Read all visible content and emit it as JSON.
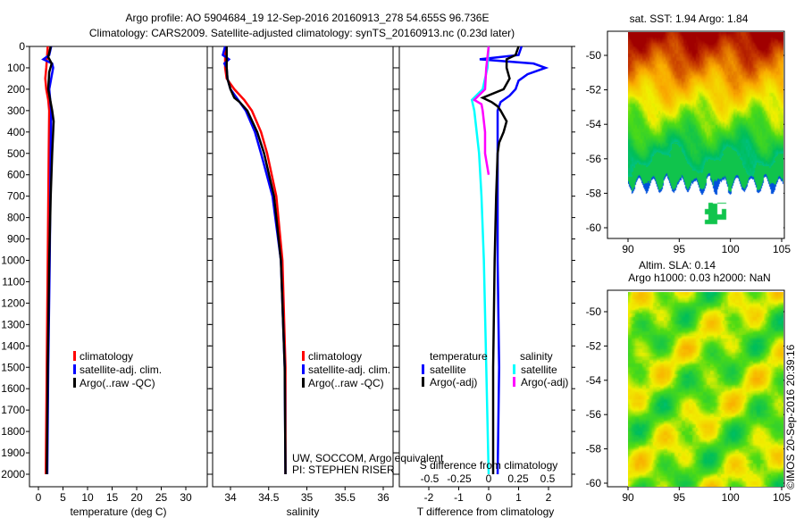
{
  "title_line1": "Argo profile: AO 5904684_19 12-Sep-2016 20160913_278 54.655S 96.736E",
  "title_line2": "Climatology: CARS2009. Satellite-adjusted climatology: synTS_20160913.nc (0.23d later)",
  "credit": "©IMOS 20-Sep-2016 20:39:16",
  "colors": {
    "climatology": "#ff0000",
    "satellite": "#0000ff",
    "argo": "#000000",
    "sal_satellite": "#00ffff",
    "sal_argo": "#ff00ff"
  },
  "chart_data": [
    {
      "type": "line",
      "name": "temperature",
      "xlabel": "temperature (deg C)",
      "xlim": [
        -2,
        32
      ],
      "xticks": [
        0,
        5,
        10,
        15,
        20,
        25,
        30
      ],
      "ylim": [
        2060,
        0
      ],
      "yticks": [
        0,
        100,
        200,
        300,
        400,
        500,
        600,
        700,
        800,
        900,
        1000,
        1100,
        1200,
        1300,
        1400,
        1500,
        1600,
        1700,
        1800,
        1900,
        2000
      ],
      "legend": [
        "climatology",
        "satellite-adj. clim.",
        "Argo(..raw -QC)"
      ],
      "series": [
        {
          "name": "climatology",
          "depth": [
            0,
            100,
            150,
            200,
            250,
            300,
            500,
            1000,
            1500,
            2000
          ],
          "values": [
            1.9,
            1.6,
            1.4,
            1.6,
            2.0,
            2.2,
            2.1,
            1.9,
            1.7,
            1.5
          ]
        },
        {
          "name": "satellite-adj. clim.",
          "depth": [
            0,
            40,
            60,
            80,
            100,
            150,
            200,
            250,
            300,
            500,
            1000,
            1500,
            2000
          ],
          "values": [
            2.6,
            2.2,
            1.0,
            2.8,
            3.0,
            2.6,
            2.2,
            2.4,
            2.6,
            2.5,
            2.3,
            2.0,
            1.8
          ]
        },
        {
          "name": "Argo(..raw -QC)",
          "depth": [
            0,
            50,
            80,
            120,
            200,
            250,
            300,
            350,
            400,
            500,
            700,
            1000,
            1500,
            2000
          ],
          "values": [
            2.5,
            2.0,
            2.7,
            2.2,
            2.0,
            2.4,
            2.8,
            3.1,
            3.0,
            2.8,
            2.5,
            2.2,
            1.9,
            1.7
          ]
        }
      ]
    },
    {
      "type": "line",
      "name": "salinity",
      "xlabel": "salinity",
      "xlim": [
        33.77,
        36.12
      ],
      "xticks": [
        34,
        34.5,
        35,
        35.5,
        36
      ],
      "ylim": [
        2060,
        0
      ],
      "legend": [
        "climatology",
        "satellite-adj. clim.",
        "Argo(..raw -QC)"
      ],
      "annotation": [
        "UW, SOCCOM, Argo equivalent",
        "PI: STEPHEN RISER"
      ],
      "series": [
        {
          "name": "climatology",
          "depth": [
            0,
            100,
            150,
            200,
            250,
            300,
            400,
            500,
            700,
            1000,
            1500,
            2000
          ],
          "values": [
            33.93,
            33.93,
            33.95,
            34.05,
            34.18,
            34.28,
            34.4,
            34.48,
            34.6,
            34.68,
            34.72,
            34.72
          ]
        },
        {
          "name": "satellite-adj. clim.",
          "depth": [
            0,
            40,
            60,
            80,
            100,
            150,
            200,
            250,
            300,
            400,
            500,
            700,
            1000,
            1500,
            2000
          ],
          "values": [
            33.93,
            33.9,
            33.98,
            33.92,
            33.95,
            33.96,
            34.0,
            34.1,
            34.2,
            34.32,
            34.4,
            34.55,
            34.66,
            34.71,
            34.72
          ]
        },
        {
          "name": "Argo(..raw -QC)",
          "depth": [
            0,
            100,
            150,
            200,
            240,
            260,
            300,
            400,
            500,
            700,
            1000,
            1500,
            2000
          ],
          "values": [
            33.95,
            33.95,
            33.96,
            34.0,
            34.05,
            34.12,
            34.22,
            34.35,
            34.44,
            34.57,
            34.66,
            34.71,
            34.72
          ]
        }
      ]
    },
    {
      "type": "line",
      "name": "difference",
      "xlabel": "T difference from climatology",
      "x2label": "S difference from climatology",
      "xlim": [
        -3,
        2.9
      ],
      "xticks": [
        -2,
        -1,
        0,
        1,
        2
      ],
      "x2ticks": [
        -0.5,
        -0.25,
        0,
        0.25,
        0.5
      ],
      "ylim": [
        2060,
        0
      ],
      "legend": {
        "temperature_title": "temperature",
        "salinity_title": "salinity",
        "t_sat": "satellite",
        "t_argo": "Argo(-adj)",
        "s_sat": "satellite",
        "s_argo": "Argo(-adj)"
      },
      "series": [
        {
          "name": "T satellite",
          "unit": "T",
          "depth": [
            0,
            40,
            60,
            80,
            100,
            130,
            160,
            200,
            230,
            260,
            300,
            500,
            1000,
            1500,
            2000
          ],
          "values": [
            1.1,
            1.0,
            -0.3,
            1.5,
            1.9,
            1.3,
            1.0,
            0.9,
            0.7,
            0.4,
            0.3,
            0.3,
            0.3,
            0.35,
            0.3
          ]
        },
        {
          "name": "T Argo(-adj)",
          "unit": "T",
          "depth": [
            0,
            40,
            60,
            100,
            150,
            200,
            240,
            260,
            280,
            300,
            350,
            400,
            450,
            500,
            700,
            1000,
            1500,
            2000
          ],
          "values": [
            1.0,
            0.9,
            0.6,
            0.6,
            0.7,
            0.5,
            -0.2,
            0.1,
            0.3,
            0.4,
            0.6,
            0.5,
            0.35,
            0.3,
            0.25,
            0.2,
            0.15,
            0.15
          ]
        },
        {
          "name": "S satellite",
          "unit": "S",
          "depth": [
            0,
            100,
            200,
            250,
            300,
            500,
            700,
            1000,
            1500,
            2000
          ],
          "values": [
            0.0,
            -0.01,
            -0.05,
            -0.14,
            -0.12,
            -0.08,
            -0.06,
            -0.04,
            -0.02,
            0.0
          ]
        },
        {
          "name": "S Argo(-adj)",
          "unit": "S",
          "depth": [
            0,
            100,
            200,
            250,
            270,
            300,
            400,
            500,
            600
          ],
          "values": [
            0.0,
            -0.02,
            -0.03,
            -0.12,
            -0.06,
            -0.05,
            -0.03,
            -0.03,
            0.0
          ]
        }
      ]
    },
    {
      "type": "heatmap",
      "name": "sst-map",
      "title": "sat. SST: 1.94 Argo: 1.84",
      "xticks": [
        90,
        95,
        100,
        105
      ],
      "yticks": [
        -50,
        -52,
        -54,
        -56,
        -58,
        -60
      ]
    },
    {
      "type": "heatmap",
      "name": "sla-map",
      "title_line1": "Altim. SLA: 0.14",
      "title_line2": "Argo h1000: 0.03 h2000: NaN",
      "xticks": [
        90,
        95,
        100,
        105
      ],
      "yticks": [
        -50,
        -52,
        -54,
        -56,
        -58,
        -60
      ]
    }
  ]
}
